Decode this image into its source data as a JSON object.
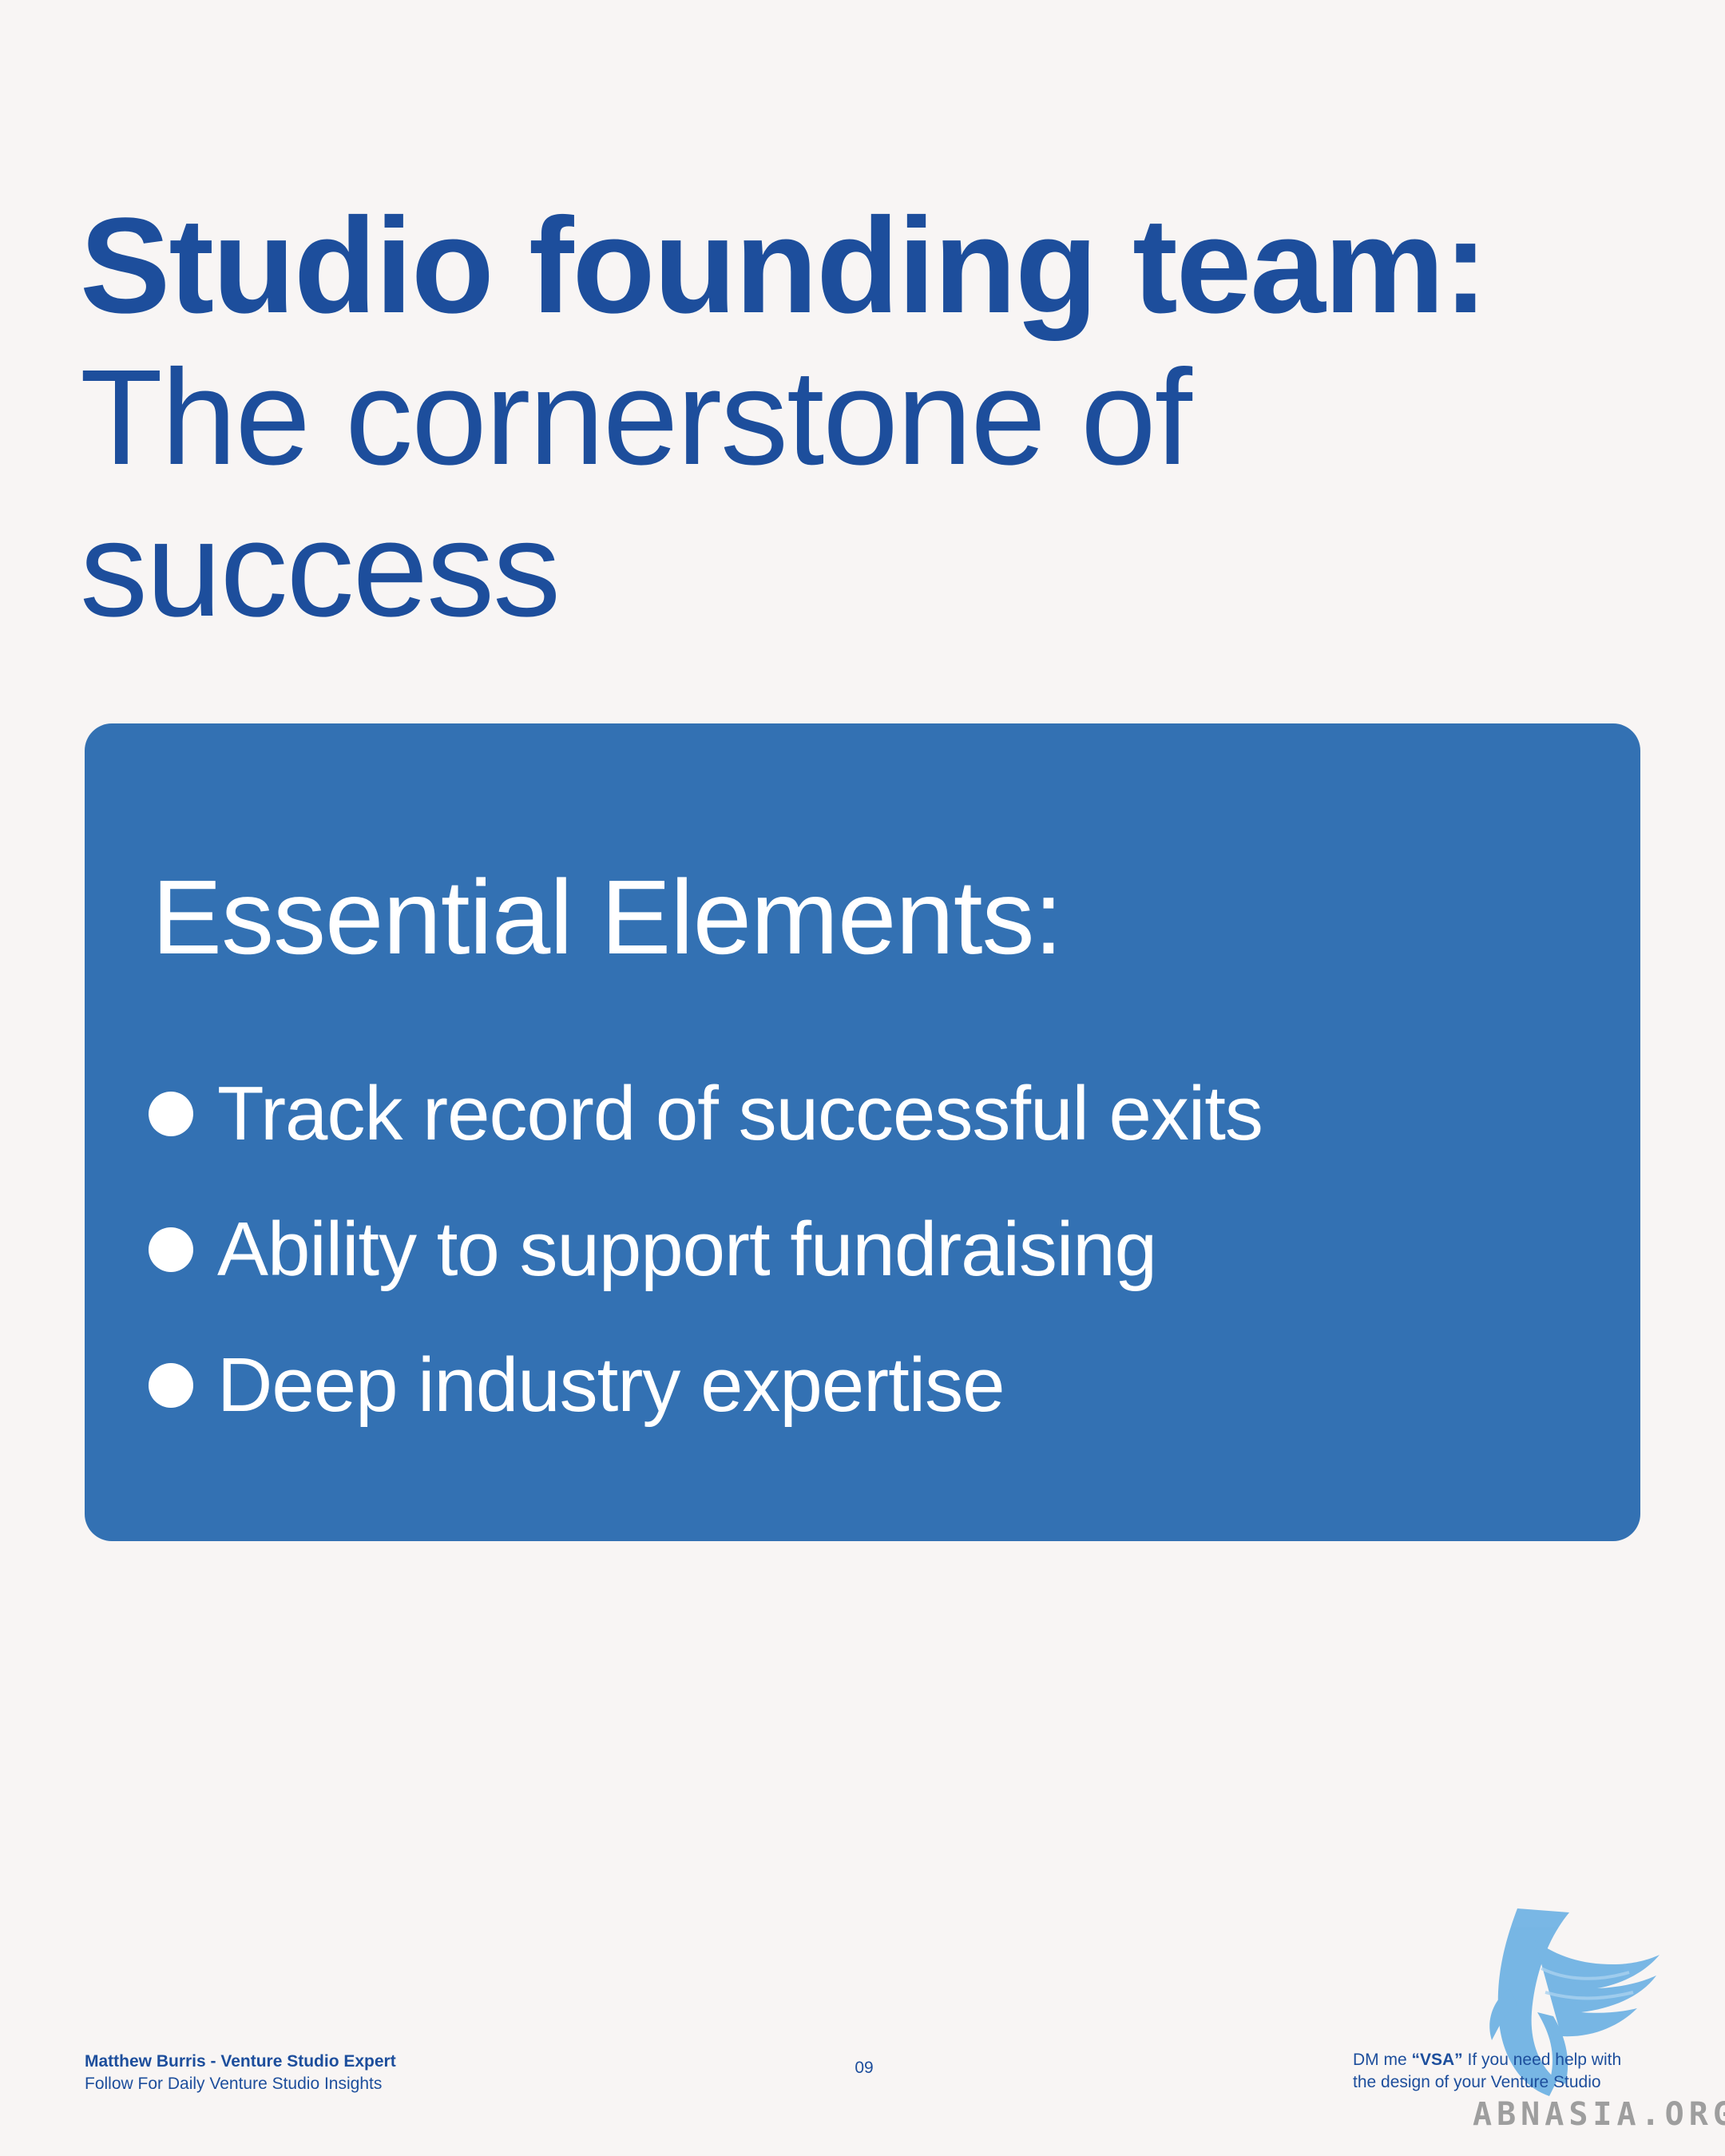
{
  "title": {
    "bold": "Studio founding team:",
    "regular": "The cornerstone of success"
  },
  "card": {
    "heading": "Essential Elements:",
    "items": [
      "Track record of successful exits",
      "Ability to support fundraising",
      "Deep industry expertise"
    ]
  },
  "footer": {
    "author": "Matthew Burris - Venture Studio Expert",
    "tagline": "Follow For Daily Venture Studio Insights",
    "page_number": "09",
    "cta_prefix": "DM me ",
    "cta_code": "“VSA”",
    "cta_suffix": " If you need help with",
    "cta_line2": "the design of your Venture Studio"
  },
  "watermark": "ABNASIA.ORG",
  "icons": {
    "bullet": "bullet-dot-icon",
    "logo": "bird-logo-icon"
  },
  "colors": {
    "background": "#f8f5f4",
    "title": "#1d4e9c",
    "card": "#3371b3",
    "card_text": "#ffffff",
    "logo": "#6ab0e3",
    "watermark": "#9e9e9e"
  }
}
